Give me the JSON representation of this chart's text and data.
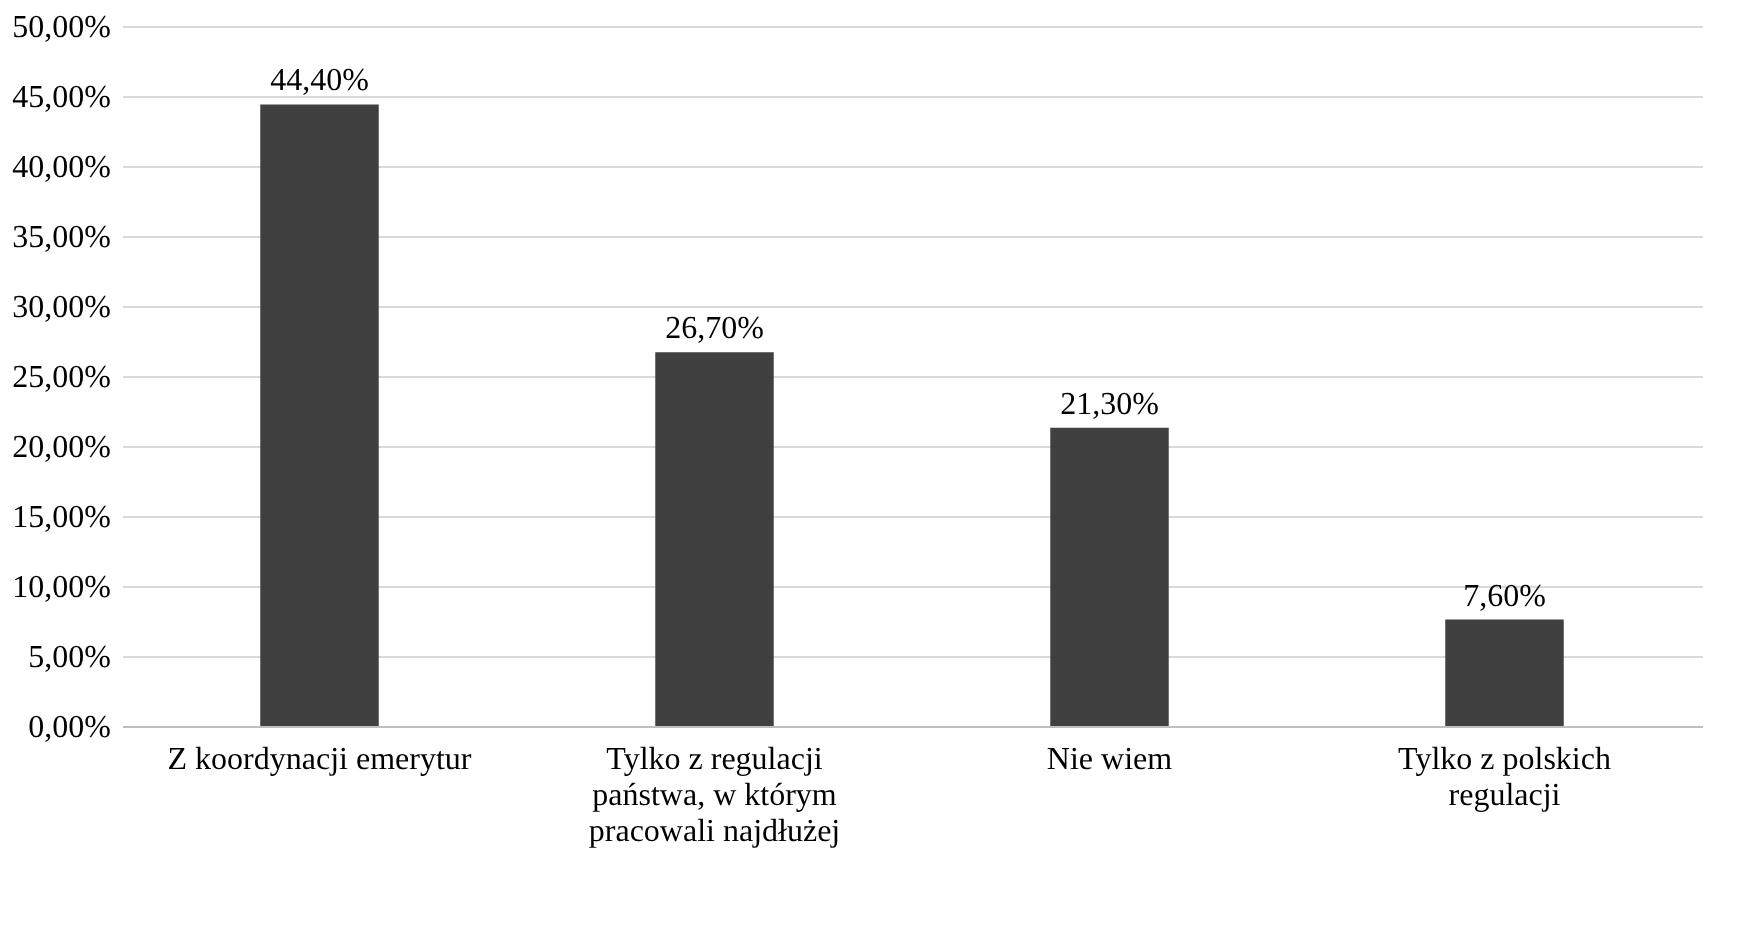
{
  "chart_data": {
    "type": "bar",
    "categories": [
      "Z koordynacji emerytur",
      "Tylko z regulacji państwa, w którym pracowali najdłużej",
      "Nie wiem",
      "Tylko z polskich regulacji"
    ],
    "values": [
      44.4,
      26.7,
      21.3,
      7.6
    ],
    "value_labels": [
      "44,40%",
      "26,70%",
      "21,30%",
      "7,60%"
    ],
    "color": "#404040",
    "ylim": [
      0,
      50
    ],
    "yticks": [
      {
        "value": 0,
        "label": "0,00%"
      },
      {
        "value": 5,
        "label": "5,00%"
      },
      {
        "value": 10,
        "label": "10,00%"
      },
      {
        "value": 15,
        "label": "15,00%"
      },
      {
        "value": 20,
        "label": "20,00%"
      },
      {
        "value": 25,
        "label": "25,00%"
      },
      {
        "value": 30,
        "label": "30,00%"
      },
      {
        "value": 35,
        "label": "35,00%"
      },
      {
        "value": 40,
        "label": "40,00%"
      },
      {
        "value": 45,
        "label": "45,00%"
      },
      {
        "value": 50,
        "label": "50,00%"
      }
    ],
    "grid": "y"
  }
}
